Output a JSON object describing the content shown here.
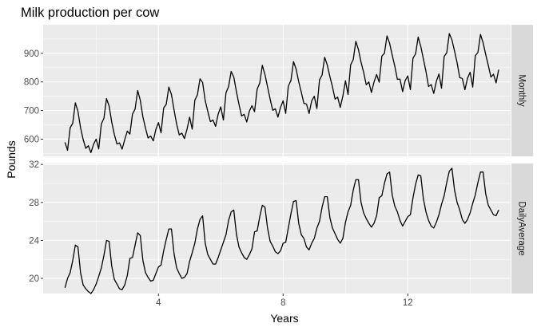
{
  "chart_data": {
    "type": "line",
    "title": "Milk production per cow",
    "xlabel": "Years",
    "ylabel": "Pounds",
    "x_ticks": [
      4,
      8,
      12
    ],
    "xlim": [
      0.3,
      15.3
    ],
    "panels": [
      {
        "strip": "Monthly",
        "ylim": [
          540,
          1000
        ],
        "y_ticks": [
          600,
          700,
          800,
          900
        ],
        "x": [
          1.0,
          1.083,
          1.167,
          1.25,
          1.333,
          1.417,
          1.5,
          1.583,
          1.667,
          1.75,
          1.833,
          1.917,
          2.0,
          2.083,
          2.167,
          2.25,
          2.333,
          2.417,
          2.5,
          2.583,
          2.667,
          2.75,
          2.833,
          2.917,
          3.0,
          3.083,
          3.167,
          3.25,
          3.333,
          3.417,
          3.5,
          3.583,
          3.667,
          3.75,
          3.833,
          3.917,
          4.0,
          4.083,
          4.167,
          4.25,
          4.333,
          4.417,
          4.5,
          4.583,
          4.667,
          4.75,
          4.833,
          4.917,
          5.0,
          5.083,
          5.167,
          5.25,
          5.333,
          5.417,
          5.5,
          5.583,
          5.667,
          5.75,
          5.833,
          5.917,
          6.0,
          6.083,
          6.167,
          6.25,
          6.333,
          6.417,
          6.5,
          6.583,
          6.667,
          6.75,
          6.833,
          6.917,
          7.0,
          7.083,
          7.167,
          7.25,
          7.333,
          7.417,
          7.5,
          7.583,
          7.667,
          7.75,
          7.833,
          7.917,
          8.0,
          8.083,
          8.167,
          8.25,
          8.333,
          8.417,
          8.5,
          8.583,
          8.667,
          8.75,
          8.833,
          8.917,
          9.0,
          9.083,
          9.167,
          9.25,
          9.333,
          9.417,
          9.5,
          9.583,
          9.667,
          9.75,
          9.833,
          9.917,
          10.0,
          10.083,
          10.167,
          10.25,
          10.333,
          10.417,
          10.5,
          10.583,
          10.667,
          10.75,
          10.833,
          10.917,
          11.0,
          11.083,
          11.167,
          11.25,
          11.333,
          11.417,
          11.5,
          11.583,
          11.667,
          11.75,
          11.833,
          11.917,
          12.0,
          12.083,
          12.167,
          12.25,
          12.333,
          12.417,
          12.5,
          12.583,
          12.667,
          12.75,
          12.833,
          12.917,
          13.0,
          13.083,
          13.167,
          13.25,
          13.333,
          13.417,
          13.5,
          13.583,
          13.667,
          13.75,
          13.833,
          13.917,
          14.0,
          14.083,
          14.167,
          14.25,
          14.333,
          14.417,
          14.5,
          14.583,
          14.667,
          14.75,
          14.833,
          14.917
        ],
        "values": [
          589,
          561,
          640,
          656,
          727,
          697,
          640,
          599,
          568,
          577,
          553,
          582,
          600,
          566,
          653,
          673,
          742,
          716,
          660,
          617,
          583,
          587,
          565,
          598,
          628,
          618,
          688,
          705,
          770,
          736,
          678,
          639,
          604,
          611,
          594,
          634,
          658,
          622,
          709,
          722,
          782,
          756,
          702,
          653,
          615,
          621,
          602,
          635,
          677,
          635,
          736,
          755,
          811,
          798,
          735,
          697,
          661,
          667,
          645,
          688,
          713,
          667,
          762,
          784,
          837,
          817,
          767,
          722,
          681,
          687,
          660,
          698,
          717,
          696,
          775,
          796,
          858,
          826,
          783,
          740,
          701,
          706,
          677,
          711,
          734,
          690,
          785,
          805,
          871,
          845,
          801,
          764,
          725,
          723,
          690,
          734,
          750,
          707,
          807,
          824,
          886,
          859,
          819,
          783,
          740,
          747,
          711,
          751,
          804,
          756,
          860,
          878,
          942,
          913,
          869,
          834,
          790,
          800,
          763,
          800,
          826,
          799,
          890,
          900,
          961,
          935,
          894,
          855,
          809,
          810,
          766,
          805,
          821,
          773,
          883,
          898,
          957,
          924,
          881,
          837,
          784,
          791,
          760,
          802,
          828,
          778,
          889,
          902,
          969,
          947,
          908,
          867,
          815,
          812,
          773,
          813,
          834,
          782,
          892,
          903,
          966,
          937,
          896,
          858,
          817,
          827,
          797,
          843
        ]
      },
      {
        "strip": "DailyAverage",
        "ylim": [
          18.4,
          32.1
        ],
        "y_ticks": [
          20,
          24,
          28,
          32
        ],
        "x": [
          1.0,
          1.083,
          1.167,
          1.25,
          1.333,
          1.417,
          1.5,
          1.583,
          1.667,
          1.75,
          1.833,
          1.917,
          2.0,
          2.083,
          2.167,
          2.25,
          2.333,
          2.417,
          2.5,
          2.583,
          2.667,
          2.75,
          2.833,
          2.917,
          3.0,
          3.083,
          3.167,
          3.25,
          3.333,
          3.417,
          3.5,
          3.583,
          3.667,
          3.75,
          3.833,
          3.917,
          4.0,
          4.083,
          4.167,
          4.25,
          4.333,
          4.417,
          4.5,
          4.583,
          4.667,
          4.75,
          4.833,
          4.917,
          5.0,
          5.083,
          5.167,
          5.25,
          5.333,
          5.417,
          5.5,
          5.583,
          5.667,
          5.75,
          5.833,
          5.917,
          6.0,
          6.083,
          6.167,
          6.25,
          6.333,
          6.417,
          6.5,
          6.583,
          6.667,
          6.75,
          6.833,
          6.917,
          7.0,
          7.083,
          7.167,
          7.25,
          7.333,
          7.417,
          7.5,
          7.583,
          7.667,
          7.75,
          7.833,
          7.917,
          8.0,
          8.083,
          8.167,
          8.25,
          8.333,
          8.417,
          8.5,
          8.583,
          8.667,
          8.75,
          8.833,
          8.917,
          9.0,
          9.083,
          9.167,
          9.25,
          9.333,
          9.417,
          9.5,
          9.583,
          9.667,
          9.75,
          9.833,
          9.917,
          10.0,
          10.083,
          10.167,
          10.25,
          10.333,
          10.417,
          10.5,
          10.583,
          10.667,
          10.75,
          10.833,
          10.917,
          11.0,
          11.083,
          11.167,
          11.25,
          11.333,
          11.417,
          11.5,
          11.583,
          11.667,
          11.75,
          11.833,
          11.917,
          12.0,
          12.083,
          12.167,
          12.25,
          12.333,
          12.417,
          12.5,
          12.583,
          12.667,
          12.75,
          12.833,
          12.917,
          13.0,
          13.083,
          13.167,
          13.25,
          13.333,
          13.417,
          13.5,
          13.583,
          13.667,
          13.75,
          13.833,
          13.917,
          14.0,
          14.083,
          14.167,
          14.25,
          14.333,
          14.417,
          14.5,
          14.583,
          14.667,
          14.75,
          14.833,
          14.917
        ],
        "values": [
          19.0,
          20.0,
          20.6,
          21.9,
          23.5,
          23.3,
          20.6,
          19.3,
          18.9,
          18.6,
          18.4,
          18.8,
          19.4,
          20.2,
          21.1,
          22.4,
          24.0,
          23.9,
          21.3,
          19.9,
          19.4,
          18.9,
          18.8,
          19.3,
          20.3,
          22.1,
          22.2,
          23.5,
          24.8,
          24.5,
          21.9,
          20.6,
          20.1,
          19.7,
          19.8,
          20.5,
          21.2,
          21.4,
          22.9,
          24.1,
          25.2,
          25.2,
          22.6,
          21.1,
          20.5,
          20.0,
          20.1,
          20.5,
          21.8,
          22.7,
          23.7,
          25.2,
          26.2,
          26.6,
          23.7,
          22.5,
          22.0,
          21.5,
          21.5,
          22.2,
          23.0,
          23.8,
          24.6,
          26.1,
          27.0,
          27.2,
          24.7,
          23.3,
          22.7,
          22.2,
          22.0,
          22.5,
          23.1,
          24.9,
          25.0,
          26.5,
          27.7,
          27.5,
          25.3,
          23.9,
          23.4,
          22.8,
          22.6,
          22.9,
          23.7,
          23.8,
          25.3,
          26.8,
          28.1,
          28.2,
          25.8,
          24.6,
          24.2,
          23.3,
          23.0,
          23.7,
          24.2,
          25.3,
          26.0,
          27.5,
          28.6,
          28.6,
          26.4,
          25.3,
          24.7,
          24.1,
          23.7,
          24.2,
          25.9,
          27.0,
          27.7,
          29.3,
          30.4,
          30.4,
          28.0,
          26.9,
          26.3,
          25.8,
          25.4,
          25.8,
          26.6,
          28.5,
          28.7,
          30.0,
          31.0,
          31.2,
          28.8,
          27.6,
          27.0,
          26.1,
          25.5,
          26.0,
          26.5,
          26.7,
          28.5,
          29.9,
          30.9,
          30.8,
          28.4,
          27.0,
          26.1,
          25.5,
          25.3,
          25.9,
          26.7,
          27.8,
          28.7,
          30.1,
          31.3,
          31.6,
          29.3,
          28.0,
          27.2,
          26.2,
          25.8,
          26.2,
          26.9,
          27.9,
          28.8,
          30.1,
          31.2,
          31.2,
          28.9,
          27.7,
          27.2,
          26.7,
          26.6,
          27.2
        ]
      }
    ],
    "colors": {
      "panel_bg": "#ebebeb",
      "grid_major": "#ffffff",
      "strip_bg": "#d9d9d9",
      "line": "#000000",
      "tick_label": "#4d4d4d"
    }
  }
}
